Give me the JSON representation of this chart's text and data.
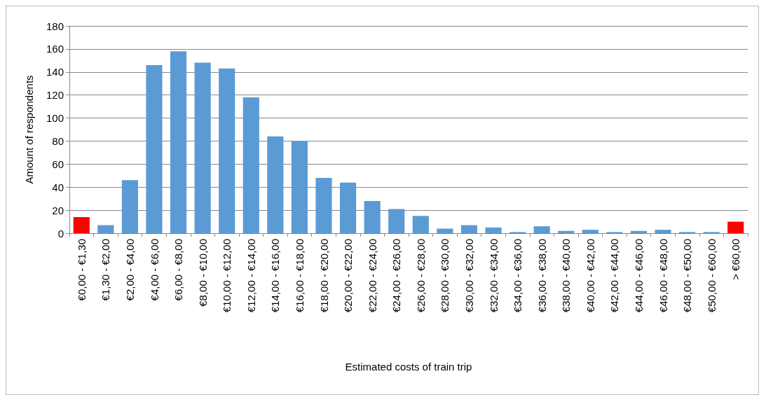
{
  "chart_data": {
    "type": "bar",
    "xlabel": "Estimated costs of train trip",
    "ylabel": "Amount of respondents",
    "categories": [
      "€0,00 - €1,30",
      "€1,30 - €2,00",
      "€2,00 - €4,00",
      "€4,00 - €6,00",
      "€6,00 - €8,00",
      "€8,00 - €10,00",
      "€10,00 - €12,00",
      "€12,00 - €14,00",
      "€14,00 - €16,00",
      "€16,00 - €18,00",
      "€18,00 - €20,00",
      "€20,00 - €22,00",
      "€22,00 - €24,00",
      "€24,00 - €26,00",
      "€26,00 - €28,00",
      "€28,00 - €30,00",
      "€30,00 - €32,00",
      "€32,00 - €34,00",
      "€34,00 - €36,00",
      "€36,00 - €38,00",
      "€38,00 - €40,00",
      "€40,00 - €42,00",
      "€42,00 - €44,00",
      "€44,00 - €46,00",
      "€46,00 - €48,00",
      "€48,00 - €50,00",
      "€50,00 - €60,00",
      "> €60,00"
    ],
    "values": [
      14,
      7,
      46,
      146,
      158,
      148,
      143,
      118,
      84,
      80,
      48,
      44,
      28,
      21,
      15,
      4,
      7,
      5,
      1,
      6,
      2,
      3,
      1,
      2,
      3,
      1,
      1,
      10
    ],
    "colors": [
      "#ff0000",
      "#5b9bd5",
      "#5b9bd5",
      "#5b9bd5",
      "#5b9bd5",
      "#5b9bd5",
      "#5b9bd5",
      "#5b9bd5",
      "#5b9bd5",
      "#5b9bd5",
      "#5b9bd5",
      "#5b9bd5",
      "#5b9bd5",
      "#5b9bd5",
      "#5b9bd5",
      "#5b9bd5",
      "#5b9bd5",
      "#5b9bd5",
      "#5b9bd5",
      "#5b9bd5",
      "#5b9bd5",
      "#5b9bd5",
      "#5b9bd5",
      "#5b9bd5",
      "#5b9bd5",
      "#5b9bd5",
      "#5b9bd5",
      "#ff0000"
    ],
    "ylim": [
      0,
      180
    ],
    "yticks": [
      0,
      20,
      40,
      60,
      80,
      100,
      120,
      140,
      160,
      180
    ],
    "grid": "y"
  }
}
